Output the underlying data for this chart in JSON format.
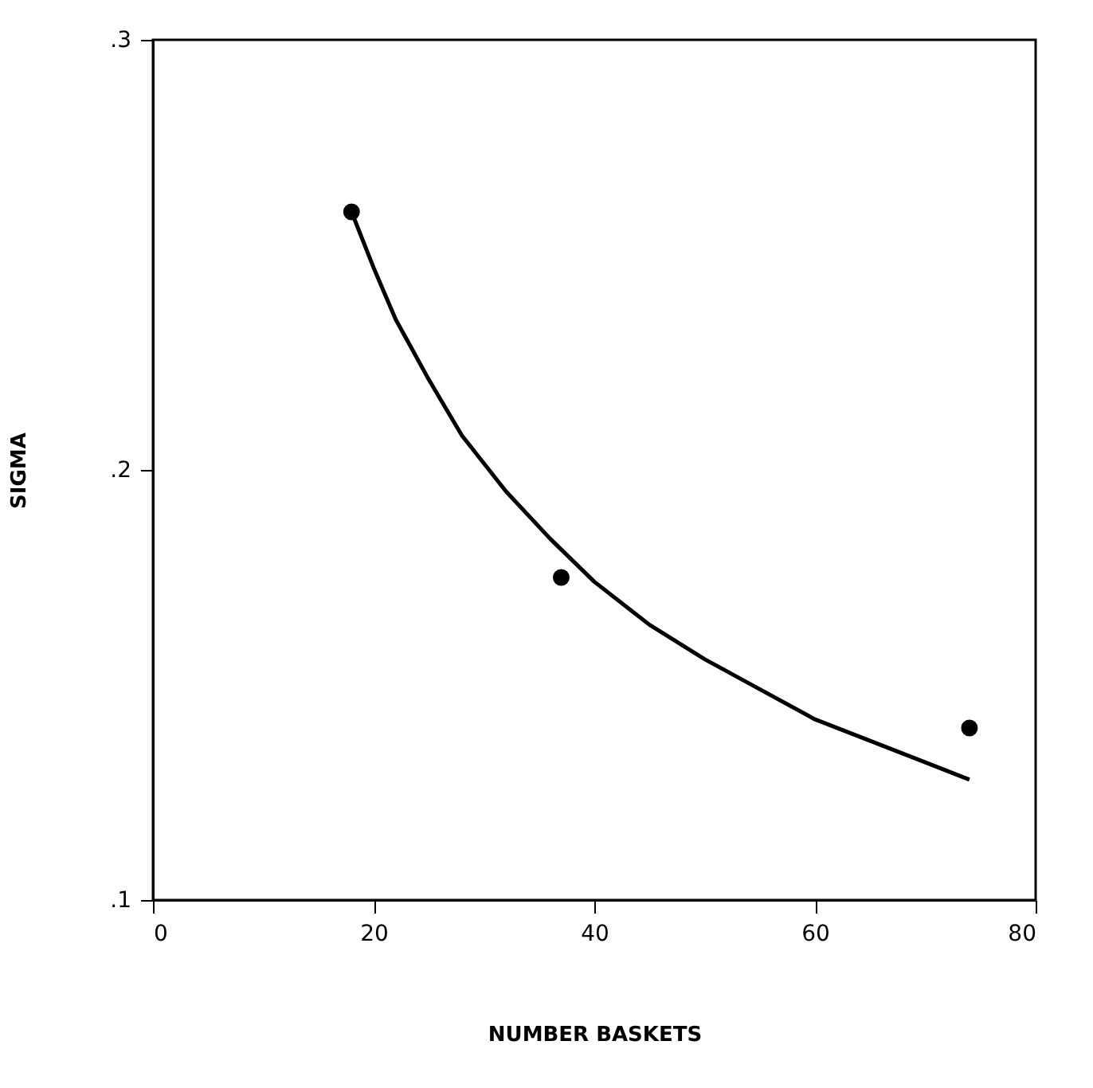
{
  "chart_data": {
    "type": "scatter",
    "xlabel": "NUMBER BASKETS",
    "ylabel": "SIGMA",
    "xlim": [
      0,
      80
    ],
    "xticks": [
      0,
      20,
      40,
      60,
      80
    ],
    "ylim": [
      0.1,
      0.3
    ],
    "yticks": [
      {
        "value": 0.1,
        "label": ".1"
      },
      {
        "value": 0.2,
        "label": ".2"
      },
      {
        "value": 0.3,
        "label": ".3"
      }
    ],
    "grid": false,
    "series": [
      {
        "type": "scatter",
        "marker": "circle",
        "color": "#000000",
        "x": [
          18,
          37,
          74
        ],
        "values": [
          0.26,
          0.175,
          0.14
        ]
      },
      {
        "type": "line",
        "line_style": "solid",
        "color": "#000000",
        "x": [
          18,
          20,
          22,
          25,
          28,
          32,
          36,
          40,
          45,
          50,
          55,
          60,
          65,
          70,
          74
        ],
        "values": [
          0.26,
          0.247,
          0.235,
          0.221,
          0.208,
          0.195,
          0.184,
          0.174,
          0.164,
          0.156,
          0.149,
          0.142,
          0.137,
          0.132,
          0.128
        ]
      }
    ]
  }
}
